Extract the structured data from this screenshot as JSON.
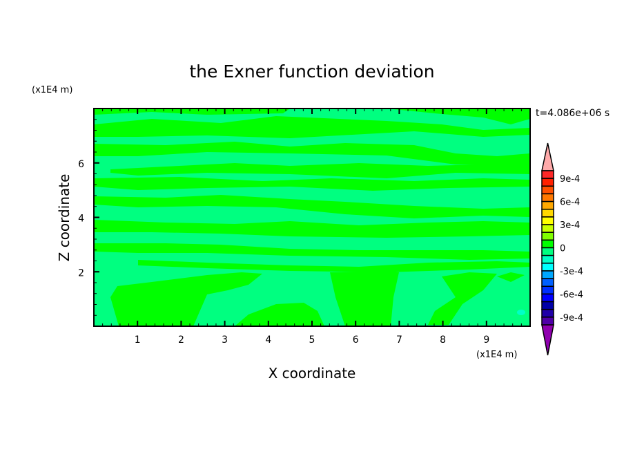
{
  "chart_data": {
    "type": "contour",
    "title": "the Exner function deviation",
    "xlabel": "X coordinate",
    "ylabel": "Z coordinate",
    "x_unit_label": "(x1E4 m)",
    "y_unit_label": "(x1E4 m)",
    "time_label": "t=4.086e+06 s",
    "xlim": [
      0,
      10
    ],
    "ylim": [
      0,
      8
    ],
    "x_ticks": [
      "1",
      "2",
      "3",
      "4",
      "5",
      "6",
      "7",
      "8",
      "9"
    ],
    "y_ticks": [
      "2",
      "4",
      "6"
    ],
    "colorbar": {
      "levels_min": -0.001,
      "levels_max": 0.001,
      "level_step": 0.0001,
      "tick_labels": [
        "9e-4",
        "6e-4",
        "3e-4",
        "0",
        "-3e-4",
        "-6e-4",
        "-9e-4"
      ],
      "tick_values": [
        0.0009,
        0.0006,
        0.0003,
        0,
        -0.0003,
        -0.0006,
        -0.0009
      ],
      "over_color": "#ffaaaa",
      "under_color": "#9000b0",
      "colors_top_to_bottom": [
        "#ff2828",
        "#ff2000",
        "#ff5000",
        "#ff7800",
        "#ffa800",
        "#ffd800",
        "#ffff00",
        "#c8ff00",
        "#80ff00",
        "#00ff00",
        "#00ff80",
        "#00ffc8",
        "#00ffff",
        "#00a8ff",
        "#0060ff",
        "#0030ff",
        "#0000ff",
        "#0000a8",
        "#2000a8",
        "#5000a8"
      ]
    },
    "field_colors": {
      "dominant_negative": "#00ff80",
      "dominant_positive": "#00ff00"
    },
    "grid": false
  }
}
